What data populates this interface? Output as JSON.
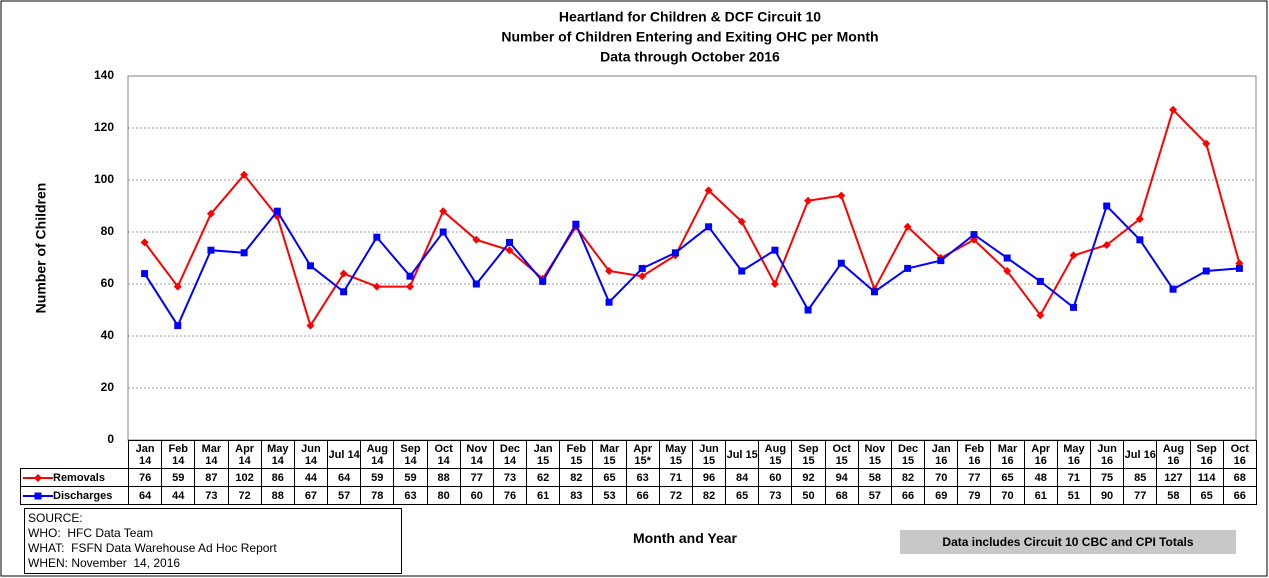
{
  "chart_data": {
    "type": "line",
    "title": [
      "Heartland for Children & DCF Circuit 10",
      "Number of Children Entering and Exiting OHC per Month",
      "Data through October 2016"
    ],
    "y_label": "Number of Children",
    "x_label": "Month and Year",
    "note": "Data includes Circuit 10 CBC and CPI Totals",
    "source": [
      "SOURCE:",
      "WHO:  HFC Data Team",
      "WHAT:  FSFN Data Warehouse Ad Hoc Report",
      "WHEN: November  14, 2016"
    ],
    "categories": [
      "Jan 14",
      "Feb 14",
      "Mar 14",
      "Apr 14",
      "May 14",
      "Jun 14",
      "Jul 14",
      "Aug 14",
      "Sep 14",
      "Oct 14",
      "Nov 14",
      "Dec 14",
      "Jan 15",
      "Feb 15",
      "Mar 15",
      "Apr 15*",
      "May 15",
      "Jun 15",
      "Jul 15",
      "Aug 15",
      "Sep 15",
      "Oct 15",
      "Nov 15",
      "Dec 15",
      "Jan 16",
      "Feb 16",
      "Mar 16",
      "Apr 16",
      "May 16",
      "Jun 16",
      "Jul 16",
      "Aug 16",
      "Sep 16",
      "Oct 16"
    ],
    "series": [
      {
        "name": "Removals",
        "color": "#ff0000",
        "marker": "diamond",
        "values": [
          76,
          59,
          87,
          102,
          86,
          44,
          64,
          59,
          59,
          88,
          77,
          73,
          62,
          82,
          65,
          63,
          71,
          96,
          84,
          60,
          92,
          94,
          58,
          82,
          70,
          77,
          65,
          48,
          71,
          75,
          85,
          127,
          114,
          68
        ]
      },
      {
        "name": "Discharges",
        "color": "#0000ff",
        "marker": "square",
        "values": [
          64,
          44,
          73,
          72,
          88,
          67,
          57,
          78,
          63,
          80,
          60,
          76,
          61,
          83,
          53,
          66,
          72,
          82,
          65,
          73,
          50,
          68,
          57,
          66,
          69,
          79,
          70,
          61,
          51,
          90,
          77,
          58,
          65,
          66
        ]
      }
    ],
    "ylim": [
      0,
      140
    ],
    "yticks": [
      0,
      20,
      40,
      60,
      80,
      100,
      120,
      140
    ],
    "grid": true
  }
}
